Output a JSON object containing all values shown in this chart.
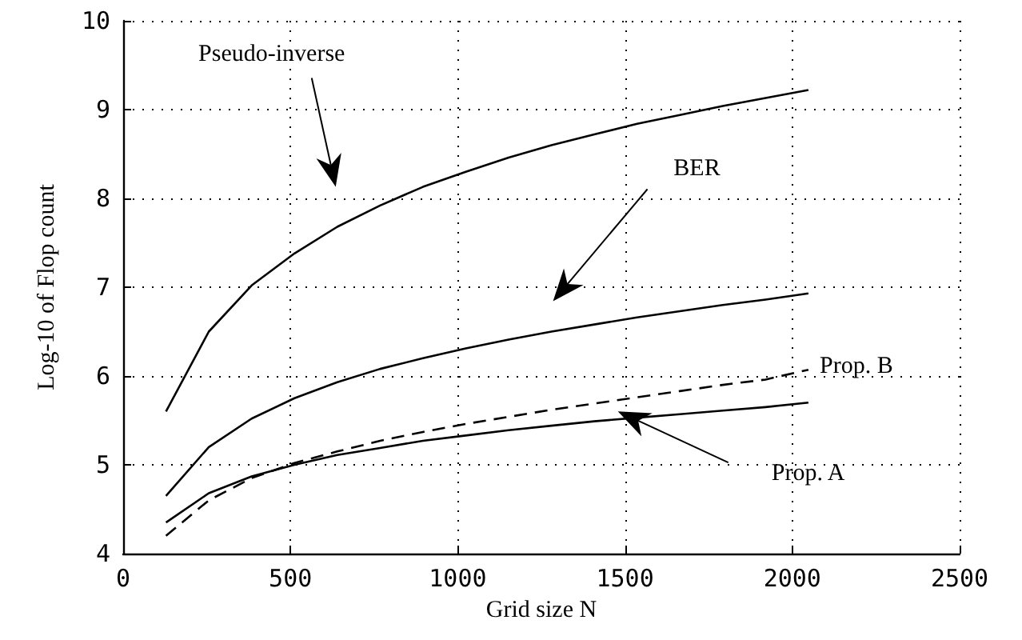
{
  "chart_data": {
    "type": "line",
    "xlabel": "Grid size N",
    "ylabel": "Log-10 of Flop count",
    "x": [
      128,
      256,
      384,
      512,
      640,
      768,
      896,
      1024,
      1152,
      1280,
      1408,
      1536,
      1664,
      1792,
      1920,
      2048
    ],
    "series": [
      {
        "name": "Pseudo-inverse",
        "color": "#000000",
        "line_style": "solid",
        "values": [
          5.6,
          6.5,
          7.02,
          7.38,
          7.68,
          7.92,
          8.13,
          8.3,
          8.46,
          8.6,
          8.72,
          8.84,
          8.94,
          9.04,
          9.13,
          9.22
        ]
      },
      {
        "name": "BER",
        "color": "#000000",
        "line_style": "solid",
        "values": [
          4.65,
          5.2,
          5.52,
          5.75,
          5.93,
          6.08,
          6.2,
          6.31,
          6.41,
          6.5,
          6.58,
          6.66,
          6.73,
          6.8,
          6.86,
          6.93
        ]
      },
      {
        "name": "Prop. B",
        "color": "#000000",
        "line_style": "dashed",
        "values": [
          4.2,
          4.6,
          4.85,
          5.02,
          5.15,
          5.27,
          5.37,
          5.46,
          5.54,
          5.62,
          5.69,
          5.76,
          5.83,
          5.9,
          5.96,
          6.07
        ]
      },
      {
        "name": "Prop. A",
        "color": "#000000",
        "line_style": "solid",
        "values": [
          4.35,
          4.68,
          4.87,
          5.0,
          5.11,
          5.19,
          5.27,
          5.33,
          5.39,
          5.44,
          5.49,
          5.53,
          5.57,
          5.61,
          5.65,
          5.7
        ]
      }
    ],
    "xlim": [
      0,
      2500
    ],
    "xticks": [
      0,
      500,
      1000,
      1500,
      2000,
      2500
    ],
    "ylim": [
      4,
      10
    ],
    "yticks": [
      4,
      5,
      6,
      7,
      8,
      9,
      10
    ],
    "grid": true,
    "marker": "none"
  }
}
